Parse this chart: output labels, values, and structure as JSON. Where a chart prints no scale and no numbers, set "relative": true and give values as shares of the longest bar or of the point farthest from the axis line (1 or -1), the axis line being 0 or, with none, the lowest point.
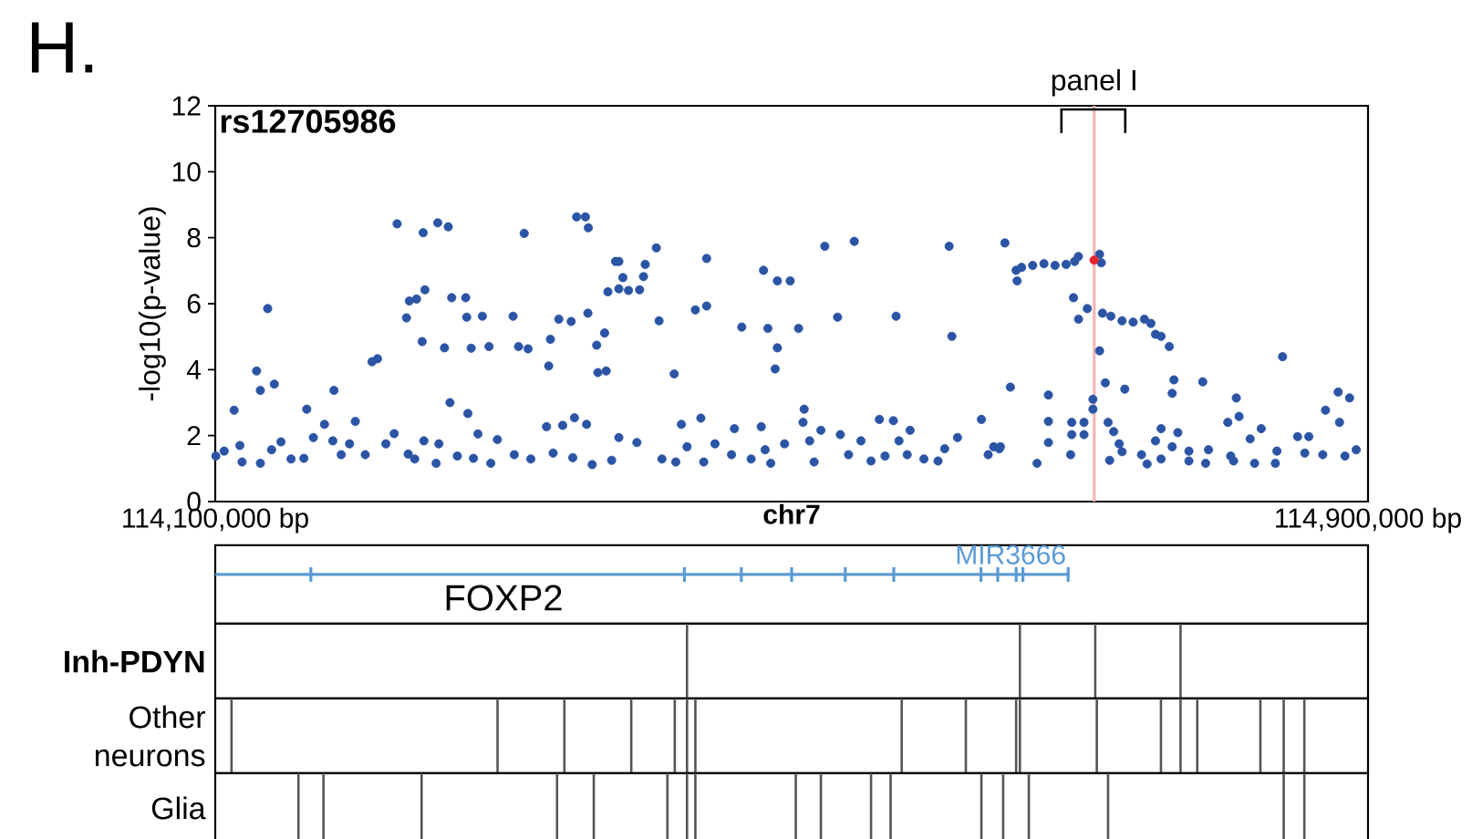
{
  "chart_data": [
    {
      "type": "scatter",
      "title": "rs12705986",
      "xlabel": "chr7",
      "ylabel": "-log10(p-value)",
      "xlim": [
        114100000,
        114900000
      ],
      "ylim": [
        0,
        12
      ],
      "yticks": [
        0,
        2,
        4,
        6,
        8,
        10,
        12
      ],
      "xticks": [
        {
          "value": 114100000,
          "label": "114,100,000 bp"
        },
        {
          "value": 114900000,
          "label": "114,900,000 bp"
        }
      ],
      "marker": "circle",
      "annotations": [
        "H.",
        "panel I"
      ],
      "ref_lines": [
        {
          "axis": "x",
          "value": 114710000,
          "color": "#f6b5b5"
        }
      ],
      "series": [
        {
          "color": "#2b54a5",
          "x": [
            114226200,
            114244300,
            114254400,
            114261700,
            114314400,
            114350800,
            114356900,
            114358900,
            114377800,
            114372500,
            114380100,
            114245500,
            114234700,
            114239700,
            114232700,
            114264100,
            114273800,
            114274500,
            114285400,
            114306700,
            114136400,
            114243600,
            114259100,
            114277600,
            114290000,
            114310500,
            114317100,
            114332600,
            114338400,
            114347000,
            114358600,
            114370200,
            114364700,
            114365500,
            114331400,
            114208800,
            114212600,
            114128700,
            114131300,
            114141000,
            114182400,
            114113100,
            114163500,
            114262900,
            114275300,
            114197200,
            114175800,
            114329900,
            114341100,
            114349300,
            114357700,
            114224200,
            114282300,
            114100400,
            114106200,
            114117100,
            114118600,
            114131300,
            114139100,
            114145600,
            114152600,
            114161500,
            114168100,
            114181600,
            114187400,
            114193200,
            114204100,
            114218400,
            114233900,
            114238400,
            114244800,
            114255200,
            114253300,
            114268000,
            114279200,
            114291200,
            114295800,
            114307500,
            114319000,
            114334500,
            114348100,
            114361600,
            114375100,
            114406100,
            114380100,
            114398400,
            114397200,
            114382900,
            114386800,
            114394500,
            114441000,
            114480500,
            114490100,
            114499000,
            114523000,
            114543500,
            114609300,
            114648000,
            114655800,
            114656500,
            114433200,
            114441000,
            114408000,
            114465400,
            114483500,
            114490100,
            114488600,
            114504800,
            114531900,
            114572500,
            114611200,
            114371300,
            114418500,
            114651800,
            114508700,
            114507900,
            114437000,
            114423500,
            114560900,
            114570600,
            114631700,
            114460300,
            114478900,
            114520300,
            114582200,
            114380100,
            114392600,
            114410000,
            114419600,
            114427400,
            114439000,
            114446800,
            114458300,
            114471900,
            114481600,
            114485500,
            114495100,
            114512500,
            114515600,
            114533800,
            114539500,
            114548100,
            114555100,
            114564800,
            114574500,
            114580200,
            114591800,
            114601600,
            114606200,
            114615100,
            114636400,
            114644900,
            114659600,
            114667300,
            114675100,
            114682800,
            114690500,
            114696400,
            114699000,
            114713700,
            114714900,
            114695600,
            114699100,
            114705200,
            114715700,
            114721500,
            114729300,
            114737000,
            114744800,
            114749300,
            114752500,
            114756400,
            114762100,
            114713700,
            114840700,
            114717700,
            114731200,
            114765300,
            114785300,
            114764100,
            114678200,
            114709100,
            114709100,
            114808600,
            114879300,
            114887200,
            114870500,
            114694400,
            114702900,
            114678200,
            114719600,
            114802700,
            114810500,
            114880200,
            114825900,
            114694400,
            114702900,
            114723500,
            114756400,
            114768000,
            114678200,
            114727300,
            114752500,
            114818200,
            114851100,
            114858900,
            114640200,
            114644100,
            114693600,
            114729300,
            114742800,
            114764100,
            114775700,
            114789300,
            114804700,
            114836800,
            114856100,
            114868600,
            114891800,
            114670300,
            114720700,
            114746700,
            114756400,
            114775700,
            114787300,
            114806700,
            114821300,
            114835700,
            114884000
          ],
          "values": [
            8.42,
            8.15,
            8.45,
            8.33,
            8.13,
            8.63,
            8.63,
            8.3,
            7.28,
            6.36,
            6.45,
            6.42,
            6.08,
            6.14,
            5.57,
            6.18,
            6.18,
            5.59,
            5.62,
            5.62,
            5.85,
            4.85,
            4.66,
            4.65,
            4.7,
            4.7,
            4.63,
            4.92,
            5.53,
            5.46,
            5.71,
            5.11,
            4.74,
            3.91,
            4.11,
            4.24,
            4.33,
            3.96,
            3.37,
            3.56,
            3.37,
            2.77,
            2.8,
            3.0,
            2.67,
            2.43,
            2.34,
            2.27,
            2.31,
            2.54,
            2.34,
            2.06,
            2.05,
            1.38,
            1.53,
            1.7,
            1.2,
            1.16,
            1.57,
            1.81,
            1.29,
            1.31,
            1.94,
            1.84,
            1.42,
            1.75,
            1.42,
            1.75,
            1.44,
            1.29,
            1.84,
            1.75,
            1.16,
            1.38,
            1.31,
            1.16,
            1.88,
            1.42,
            1.29,
            1.47,
            1.33,
            1.12,
            1.25,
            7.69,
            7.28,
            7.19,
            6.82,
            6.79,
            6.4,
            6.42,
            7.37,
            7.01,
            6.69,
            6.69,
            7.74,
            7.89,
            7.74,
            7.84,
            7.01,
            6.69,
            5.81,
            5.93,
            5.48,
            5.29,
            5.25,
            4.66,
            4.02,
            5.25,
            5.59,
            5.62,
            5.01,
            3.96,
            3.87,
            3.47,
            2.8,
            2.4,
            2.53,
            2.34,
            2.49,
            2.45,
            2.49,
            2.21,
            2.27,
            2.16,
            2.16,
            1.94,
            1.79,
            1.29,
            1.2,
            1.66,
            1.2,
            1.75,
            1.42,
            1.29,
            1.57,
            1.16,
            1.75,
            1.84,
            1.2,
            2.03,
            1.42,
            1.84,
            1.23,
            1.38,
            1.84,
            1.42,
            1.29,
            1.23,
            1.6,
            1.94,
            1.42,
            1.66,
            7.1,
            7.16,
            7.21,
            7.16,
            7.19,
            7.28,
            7.43,
            7.5,
            7.24,
            6.18,
            5.53,
            5.85,
            5.71,
            5.62,
            5.48,
            5.44,
            5.53,
            5.4,
            5.07,
            5.01,
            4.7,
            4.57,
            4.39,
            3.6,
            3.41,
            3.69,
            3.63,
            3.28,
            3.23,
            3.1,
            2.8,
            3.14,
            3.32,
            3.14,
            2.77,
            2.4,
            2.4,
            2.43,
            2.4,
            2.4,
            2.58,
            2.4,
            2.21,
            2.03,
            2.03,
            2.12,
            2.21,
            2.09,
            1.79,
            1.75,
            1.84,
            1.9,
            1.97,
            1.97,
            1.66,
            1.6,
            1.42,
            1.51,
            1.42,
            1.66,
            1.53,
            1.57,
            1.38,
            1.53,
            1.47,
            1.42,
            1.57,
            1.16,
            1.25,
            1.14,
            1.29,
            1.23,
            1.16,
            1.23,
            1.16,
            1.16,
            1.38
          ]
        },
        {
          "color": "#e8232a",
          "x": [
            114709900
          ],
          "values": [
            7.32
          ]
        }
      ]
    },
    {
      "type": "other",
      "annotations": [
        "FOXP2",
        "MIR3666"
      ]
    },
    {
      "type": "bar",
      "ylabel": "Inh-PDYN",
      "relative": true,
      "xlim": [
        114100000,
        114900000
      ],
      "color": "#555555",
      "x": [
        114427400,
        114658400,
        114710700,
        114769900
      ],
      "values": [
        1,
        1,
        1,
        1
      ]
    },
    {
      "type": "bar",
      "ylabel": "Other neurons",
      "relative": true,
      "xlim": [
        114100000,
        114900000
      ],
      "color": "#555555",
      "x": [
        114111300,
        114295900,
        114342300,
        114388700,
        114418900,
        114427400,
        114433200,
        114576400,
        114620900,
        114655800,
        114658400,
        114711800,
        114756300,
        114769900,
        114781500,
        114825300,
        114841500,
        114855800
      ],
      "values": [
        1,
        1,
        1,
        1,
        1,
        1,
        1,
        1,
        1,
        1,
        1,
        1,
        1,
        1,
        1,
        1,
        1,
        1
      ]
    },
    {
      "type": "bar",
      "ylabel": "Glia",
      "relative": true,
      "xlim": [
        114100000,
        114900000
      ],
      "color": "#555555",
      "x": [
        114157700,
        114175100,
        114243200,
        114337200,
        114362700,
        114413800,
        114427400,
        114433200,
        114502900,
        114520300,
        114555100,
        114568700,
        114631700,
        114646800,
        114664600,
        114719600,
        114841500,
        114855800
      ],
      "values": [
        1,
        1,
        1,
        1,
        1,
        1,
        1,
        1,
        1,
        1,
        1,
        1,
        1,
        1,
        1,
        1,
        1,
        1
      ]
    }
  ]
}
